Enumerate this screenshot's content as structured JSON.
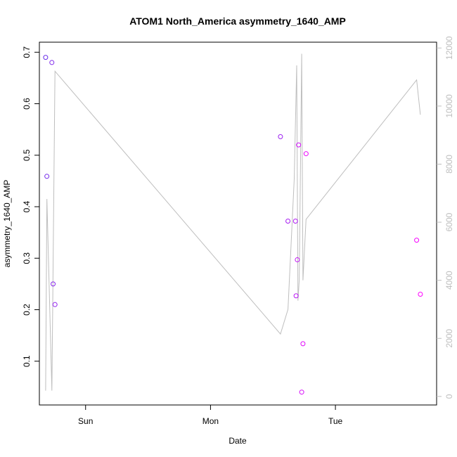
{
  "chart_data": {
    "type": "scatter",
    "title": "ATOM1 North_America asymmetry_1640_AMP",
    "xlabel": "Date",
    "ylabel": "asymmetry_1640_AMP",
    "xlim": [
      -0.37,
      2.81
    ],
    "ylim": [
      0.015,
      0.7195
    ],
    "x_ticks": [
      {
        "label": "Sun",
        "value": 0
      },
      {
        "label": "Mon",
        "value": 1
      },
      {
        "label": "Tue",
        "value": 2
      }
    ],
    "y_ticks": [
      "0.1",
      "0.2",
      "0.3",
      "0.4",
      "0.5",
      "0.6",
      "0.7"
    ],
    "y2_ticks": [
      "0",
      "2000",
      "4000",
      "6000",
      "8000",
      "10000",
      "12000"
    ],
    "y2lim": [
      -294,
      12200
    ],
    "colors": {
      "line": "#bebebe",
      "points_start": "#6a2ee8",
      "points_end": "#ff00ff",
      "axis": "#000000",
      "axis_right": "#bebebe"
    },
    "series": [
      {
        "type": "points",
        "axis": "left",
        "x": [
          -0.32,
          -0.31,
          -0.27,
          -0.26,
          -0.245,
          1.56,
          1.62,
          1.68,
          1.685,
          1.695,
          1.705,
          1.73,
          1.74,
          1.765,
          2.65,
          2.68
        ],
        "y": [
          0.69,
          0.459,
          0.68,
          0.25,
          0.21,
          0.536,
          0.372,
          0.372,
          0.227,
          0.297,
          0.52,
          0.04,
          0.134,
          0.503,
          0.335,
          0.23
        ]
      },
      {
        "type": "line",
        "axis": "right",
        "x": [
          -0.32,
          -0.31,
          -0.27,
          -0.245,
          1.56,
          1.62,
          1.67,
          1.69,
          1.7,
          1.71,
          1.73,
          1.74,
          1.765,
          2.65,
          2.68
        ],
        "y": [
          200,
          6800,
          200,
          11200,
          2150,
          3000,
          7500,
          11400,
          3300,
          4000,
          11800,
          4000,
          6100,
          10900,
          9700
        ]
      }
    ]
  }
}
